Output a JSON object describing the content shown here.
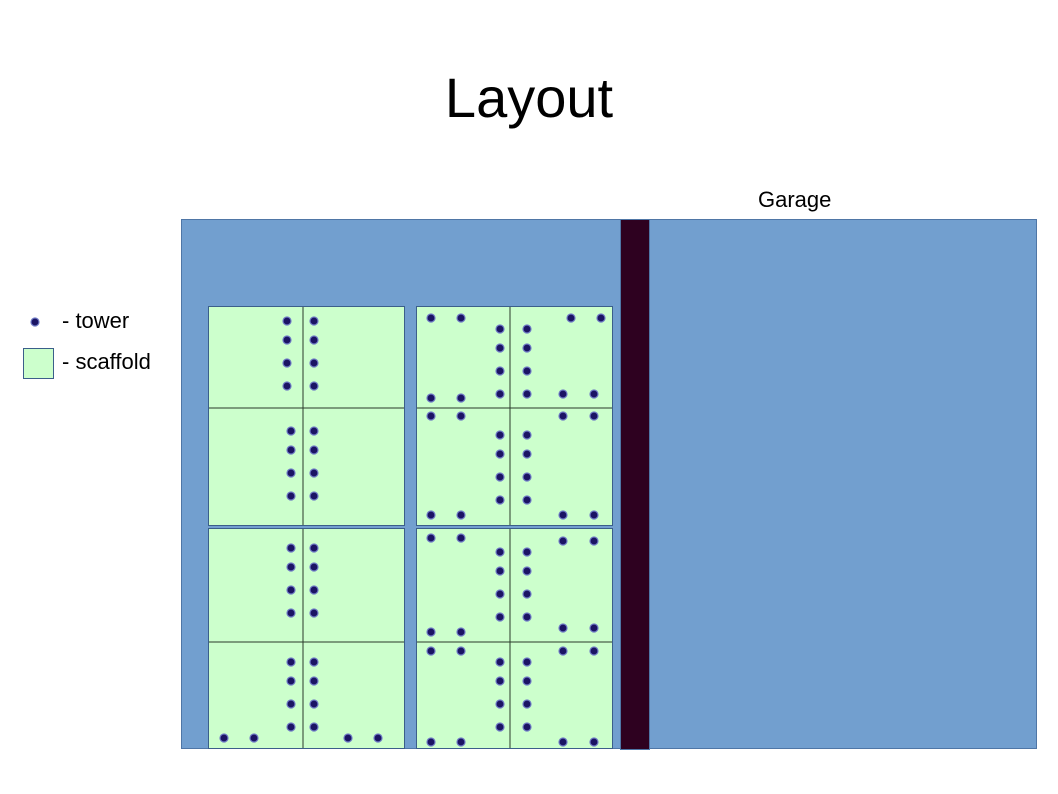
{
  "title": "Layout",
  "garage_label": "Garage",
  "legend": {
    "tower_label": "- tower",
    "scaffold_label": "- scaffold"
  },
  "colors": {
    "ground": "#729fcf",
    "divider": "#2e0120",
    "scaffold_fill": "#ccffcc",
    "scaffold_stroke": "#3b5f8a",
    "tower_dot": "#1b1464",
    "tower_ring": "#6d78c4"
  }
}
